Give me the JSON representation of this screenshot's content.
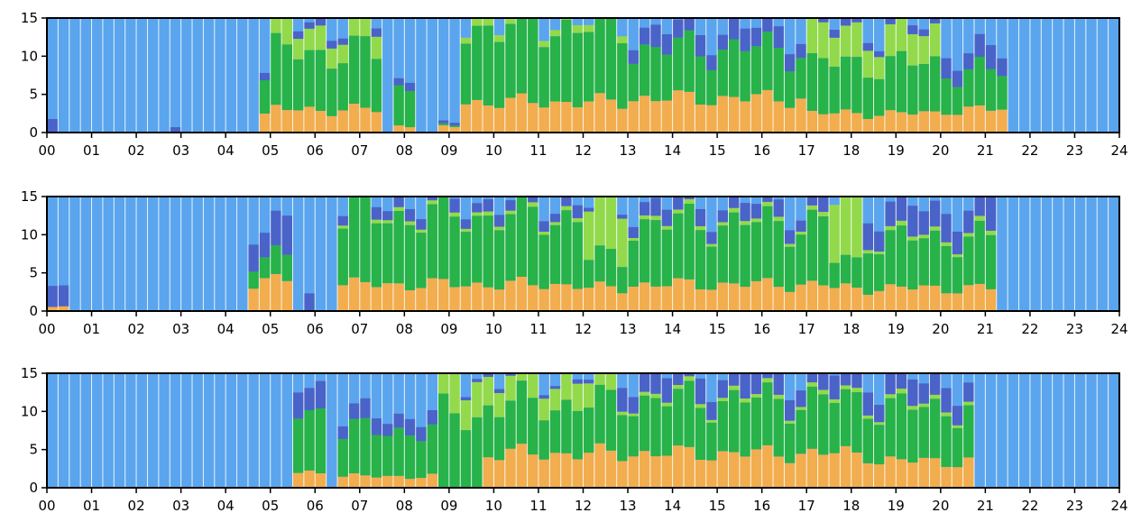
{
  "chart_data": {
    "type": "bar",
    "stacked": true,
    "panels": 3,
    "bins_per_panel": 96,
    "title": "",
    "xlabel": "",
    "ylabel": "",
    "xlim": [
      0,
      24
    ],
    "ylim": [
      0,
      15
    ],
    "x_ticks": [
      "00",
      "01",
      "02",
      "03",
      "04",
      "05",
      "06",
      "07",
      "08",
      "09",
      "10",
      "11",
      "12",
      "13",
      "14",
      "15",
      "16",
      "17",
      "18",
      "19",
      "20",
      "21",
      "22",
      "23",
      "24"
    ],
    "y_ticks": [
      "0",
      "5",
      "10",
      "15"
    ],
    "grid": false,
    "legend": "none",
    "series_colors": {
      "orange": "#f2ad4e",
      "green": "#27b24a",
      "light_green": "#93d94c",
      "blue": "#4a63c8",
      "background_light_blue": "#5aa5ee"
    },
    "note_fill": "Each 15-minute bin stacks orange, green, light green and blue from the bottom; the remainder up to 15 is light blue.",
    "charts": [
      {
        "segments": [
          {
            "t0": 0.0,
            "t1": 0.25,
            "orange": 0,
            "green": 0,
            "light_green": 0,
            "blue": 1.8
          },
          {
            "t0": 2.75,
            "t1": 3.0,
            "orange": 0,
            "green": 0,
            "light_green": 0,
            "blue": 0.9
          },
          {
            "t0": 4.75,
            "t1": 5.0,
            "orange": 2.3,
            "green": 4.8,
            "light_green": 0,
            "blue": 1.2
          },
          {
            "t0": 5.0,
            "t1": 7.5,
            "orange": 3.0,
            "green": 7.5,
            "light_green": 3.0,
            "blue": 1.0
          },
          {
            "t0": 7.75,
            "t1": 8.25,
            "orange": 0.9,
            "green": 5.0,
            "light_green": 0,
            "blue": 1.0
          },
          {
            "t0": 8.75,
            "t1": 9.25,
            "orange": 0.8,
            "green": 0.2,
            "light_green": 0,
            "blue": 0.3
          },
          {
            "t0": 9.0,
            "t1": 13.0,
            "orange": 4.0,
            "green": 10.0,
            "light_green": 1.0,
            "blue": 0
          },
          {
            "t0": 13.0,
            "t1": 17.0,
            "orange": 4.5,
            "green": 6.5,
            "light_green": 0,
            "blue": 2.5
          },
          {
            "t0": 17.0,
            "t1": 20.0,
            "orange": 2.5,
            "green": 6.5,
            "light_green": 4.0,
            "blue": 1.0
          },
          {
            "t0": 20.0,
            "t1": 21.5,
            "orange": 3.0,
            "green": 5.0,
            "light_green": 0,
            "blue": 2.5
          }
        ]
      },
      {
        "segments": [
          {
            "t0": 0.0,
            "t1": 0.5,
            "orange": 0.5,
            "green": 0,
            "light_green": 0,
            "blue": 2.8
          },
          {
            "t0": 4.5,
            "t1": 5.5,
            "orange": 4.0,
            "green": 3.0,
            "light_green": 0,
            "blue": 4.0
          },
          {
            "t0": 5.75,
            "t1": 6.0,
            "orange": 0,
            "green": 0,
            "light_green": 0,
            "blue": 2.8
          },
          {
            "t0": 6.5,
            "t1": 12.0,
            "orange": 3.5,
            "green": 9.0,
            "light_green": 0.5,
            "blue": 1.5
          },
          {
            "t0": 12.0,
            "t1": 13.0,
            "orange": 3.0,
            "green": 4.0,
            "light_green": 7.0,
            "blue": 0.5
          },
          {
            "t0": 13.0,
            "t1": 17.5,
            "orange": 3.5,
            "green": 8.0,
            "light_green": 0.5,
            "blue": 2.0
          },
          {
            "t0": 17.5,
            "t1": 18.25,
            "orange": 3.0,
            "green": 3.5,
            "light_green": 8.0,
            "blue": 0
          },
          {
            "t0": 18.25,
            "t1": 21.25,
            "orange": 3.0,
            "green": 6.5,
            "light_green": 0.5,
            "blue": 3.5
          }
        ]
      },
      {
        "segments": [
          {
            "t0": 5.5,
            "t1": 6.25,
            "orange": 2.0,
            "green": 8.0,
            "light_green": 0,
            "blue": 3.5
          },
          {
            "t0": 6.5,
            "t1": 8.75,
            "orange": 1.5,
            "green": 6.0,
            "light_green": 0,
            "blue": 2.0
          },
          {
            "t0": 8.75,
            "t1": 9.75,
            "orange": 0,
            "green": 9.5,
            "light_green": 5.0,
            "blue": 0.5
          },
          {
            "t0": 9.75,
            "t1": 12.75,
            "orange": 4.5,
            "green": 6.5,
            "light_green": 3.5,
            "blue": 0.5
          },
          {
            "t0": 12.75,
            "t1": 18.5,
            "orange": 4.5,
            "green": 7.0,
            "light_green": 0.5,
            "blue": 3.0
          },
          {
            "t0": 18.5,
            "t1": 20.75,
            "orange": 3.5,
            "green": 7.0,
            "light_green": 0.5,
            "blue": 3.0
          }
        ]
      }
    ]
  }
}
